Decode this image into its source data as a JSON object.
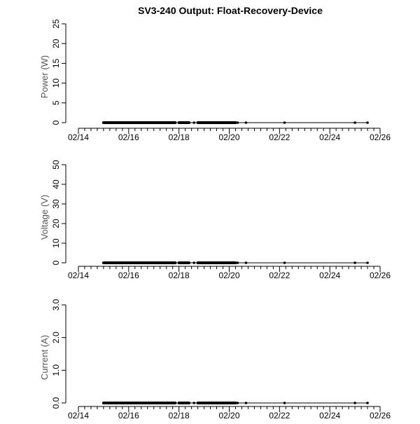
{
  "title": "SV3-240 Output: Float-Recovery-Device",
  "colors": {
    "line": "#000000",
    "axis": "#000000",
    "axis_title": "#555555"
  },
  "x_points": [
    "02/15",
    "02/15",
    "02/15",
    "02/16",
    "02/16",
    "02/16",
    "02/16",
    "02/17",
    "02/17",
    "02/17",
    "02/17",
    "02/18",
    "02/18",
    "02/18",
    "02/18",
    "02/18",
    "02/19",
    "02/19",
    "02/19",
    "02/19",
    "02/20",
    "02/20",
    "02/20",
    "02/22",
    "02/25",
    "02/25"
  ],
  "chart_data": [
    {
      "type": "line",
      "xlabel": "",
      "ylabel": "Power (W)",
      "xlim": [
        "02/14",
        "02/26"
      ],
      "xticks_major": [
        "02/14",
        "02/16",
        "02/18",
        "02/20",
        "02/22",
        "02/24",
        "02/26"
      ],
      "xtick_labels": [
        "02/14",
        "02/16",
        "02/18",
        "02/20",
        "02/22",
        "02/24",
        "02/26"
      ],
      "ylim": [
        0,
        25
      ],
      "yticks": [
        0,
        5,
        10,
        15,
        20,
        25
      ],
      "ytick_labels": [
        "0",
        "5",
        "10",
        "15",
        "20",
        "25"
      ],
      "grid": false,
      "series": [
        {
          "values": [
            0,
            0,
            0,
            0,
            0,
            0,
            0,
            0,
            0,
            0,
            0,
            0,
            0,
            0,
            0,
            0,
            0,
            0,
            0,
            0,
            0,
            0,
            0,
            0,
            0,
            0
          ]
        }
      ]
    },
    {
      "type": "line",
      "xlabel": "",
      "ylabel": "Voltage (V)",
      "xlim": [
        "02/14",
        "02/26"
      ],
      "xticks_major": [
        "02/14",
        "02/16",
        "02/18",
        "02/20",
        "02/22",
        "02/24",
        "02/26"
      ],
      "xtick_labels": [
        "02/14",
        "02/16",
        "02/18",
        "02/20",
        "02/22",
        "02/24",
        "02/26"
      ],
      "ylim": [
        0,
        50
      ],
      "yticks": [
        0,
        10,
        20,
        30,
        40,
        50
      ],
      "ytick_labels": [
        "0",
        "10",
        "20",
        "30",
        "40",
        "50"
      ],
      "grid": false,
      "series": [
        {
          "values": [
            0,
            0,
            0,
            0,
            0,
            0,
            0,
            0,
            0,
            0,
            0,
            0,
            0,
            0,
            0,
            0,
            0,
            0,
            0,
            0,
            0,
            0,
            0,
            0,
            0,
            0
          ]
        }
      ]
    },
    {
      "type": "line",
      "xlabel": "",
      "ylabel": "Current (A)",
      "xlim": [
        "02/14",
        "02/26"
      ],
      "xticks_major": [
        "02/14",
        "02/16",
        "02/18",
        "02/20",
        "02/22",
        "02/24",
        "02/26"
      ],
      "xtick_labels": [
        "02/14",
        "02/16",
        "02/18",
        "02/20",
        "02/22",
        "02/24",
        "02/26"
      ],
      "ylim": [
        0,
        3
      ],
      "yticks": [
        0,
        1,
        2,
        3
      ],
      "ytick_labels": [
        "0.0",
        "1.0",
        "2.0",
        "3.0"
      ],
      "grid": false,
      "series": [
        {
          "values": [
            0,
            0,
            0,
            0,
            0,
            0,
            0,
            0,
            0,
            0,
            0,
            0,
            0,
            0,
            0,
            0,
            0,
            0,
            0,
            0,
            0,
            0,
            0,
            0,
            0,
            0
          ]
        }
      ]
    }
  ]
}
